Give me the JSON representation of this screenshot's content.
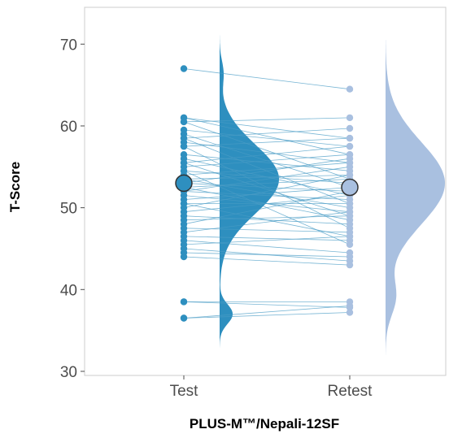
{
  "chart_data": {
    "type": "scatter",
    "subtype": "paired raincloud",
    "xlabel": "PLUS-M™/Nepali-12SF",
    "ylabel": "T-Score",
    "categories": [
      "Test",
      "Retest"
    ],
    "ylim": [
      29.5,
      74.5
    ],
    "yticks": [
      30,
      40,
      50,
      60,
      70
    ],
    "grid": false,
    "legend": "none",
    "colors": {
      "test": "#2e8fbf",
      "retest": "#a9c0e0",
      "pair_line": "#4a9cc6",
      "mean_outline": "#333333",
      "panel_border": "#cccccc"
    },
    "pairs": [
      [
        67.0,
        64.5
      ],
      [
        61.0,
        56.5
      ],
      [
        61.0,
        58.5
      ],
      [
        60.5,
        61.0
      ],
      [
        60.5,
        53.5
      ],
      [
        59.5,
        57.5
      ],
      [
        59.0,
        52.5
      ],
      [
        58.5,
        59.7
      ],
      [
        58.5,
        50.5
      ],
      [
        58.0,
        55.5
      ],
      [
        57.5,
        58.5
      ],
      [
        57.5,
        47.5
      ],
      [
        56.5,
        54.5
      ],
      [
        56.0,
        51.5
      ],
      [
        55.5,
        57.5
      ],
      [
        55.5,
        49.0
      ],
      [
        55.0,
        56.5
      ],
      [
        54.5,
        53.0
      ],
      [
        54.5,
        45.5
      ],
      [
        54.0,
        55.5
      ],
      [
        53.5,
        50.0
      ],
      [
        53.5,
        54.0
      ],
      [
        53.0,
        52.0
      ],
      [
        53.0,
        56.0
      ],
      [
        52.5,
        48.5
      ],
      [
        52.5,
        53.5
      ],
      [
        52.0,
        55.0
      ],
      [
        52.0,
        51.0
      ],
      [
        51.5,
        49.5
      ],
      [
        51.0,
        52.5
      ],
      [
        50.5,
        50.5
      ],
      [
        50.5,
        46.5
      ],
      [
        50.0,
        54.0
      ],
      [
        49.5,
        51.5
      ],
      [
        49.0,
        48.0
      ],
      [
        48.5,
        49.0
      ],
      [
        48.0,
        52.0
      ],
      [
        47.5,
        47.0
      ],
      [
        47.0,
        49.5
      ],
      [
        46.5,
        46.0
      ],
      [
        46.0,
        44.5
      ],
      [
        45.5,
        46.5
      ],
      [
        45.0,
        43.5
      ],
      [
        44.5,
        44.0
      ],
      [
        44.0,
        43.0
      ],
      [
        38.5,
        38.5
      ],
      [
        38.5,
        37.8
      ],
      [
        36.5,
        37.2
      ],
      [
        36.5,
        38.0
      ]
    ],
    "means": {
      "test": 53.0,
      "retest": 52.5
    },
    "density": {
      "test": {
        "range": [
          31.0,
          72.5
        ],
        "components": [
          {
            "mean": 53.5,
            "sd": 4.2,
            "weight": 1.0
          },
          {
            "mean": 37.0,
            "sd": 1.2,
            "weight": 0.22
          },
          {
            "mean": 66.5,
            "sd": 1.5,
            "weight": 0.06
          }
        ]
      },
      "retest": {
        "range": [
          32.0,
          70.5
        ],
        "components": [
          {
            "mean": 53.0,
            "sd": 5.0,
            "weight": 1.0
          },
          {
            "mean": 39.0,
            "sd": 2.2,
            "weight": 0.16
          }
        ]
      }
    }
  }
}
